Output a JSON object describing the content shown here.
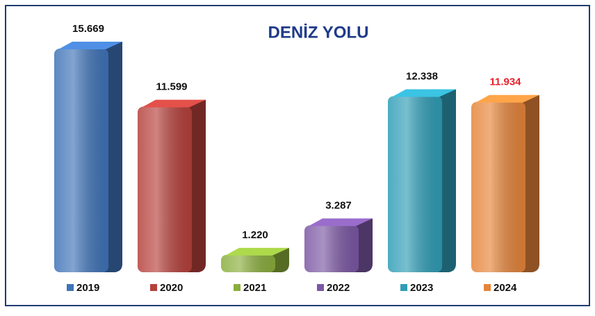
{
  "chart_data": {
    "type": "bar3d",
    "title": "DENİZ YOLU",
    "categories": [
      "2019",
      "2020",
      "2021",
      "2022",
      "2023",
      "2024"
    ],
    "values": [
      15669,
      11599,
      1220,
      3287,
      12338,
      11934
    ],
    "value_labels": [
      "15.669",
      "11.599",
      "1.220",
      "3.287",
      "12.338",
      "11.934"
    ],
    "value_label_colors": [
      "#111111",
      "#111111",
      "#111111",
      "#111111",
      "#111111",
      "#e8202a"
    ],
    "colors": [
      "#3f73b8",
      "#b6403b",
      "#8aae3c",
      "#7b57a3",
      "#2f9db6",
      "#e5843a"
    ],
    "legend": "bottom"
  }
}
